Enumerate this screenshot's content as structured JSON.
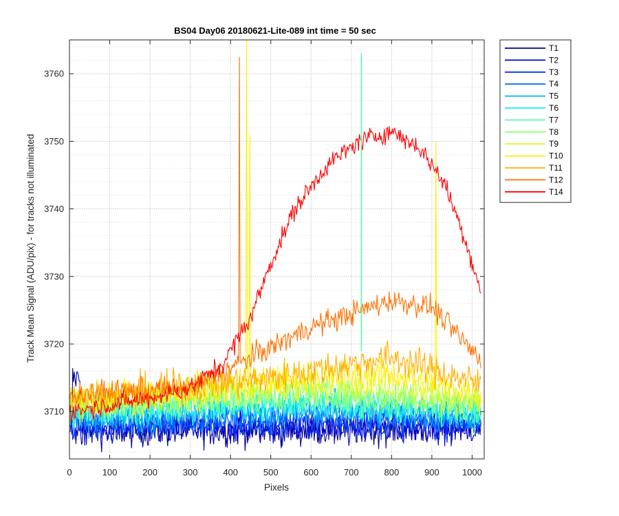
{
  "chart_data": {
    "type": "line",
    "title": "BS04 Day06 20180621-Lite-089 int time = 50 sec",
    "xlabel": "Pixels",
    "ylabel": "Track Mean Signal (ADU/pix) - for tracks not illuminated",
    "xlim": [
      0,
      1030
    ],
    "ylim": [
      3703,
      3765
    ],
    "xticks": [
      "0",
      "100",
      "200",
      "300",
      "400",
      "500",
      "600",
      "700",
      "800",
      "900",
      "1000"
    ],
    "yticks": [
      "3710",
      "3720",
      "3730",
      "3740",
      "3750",
      "3760"
    ],
    "grid": "major and minor (dotted)",
    "legend_position": "outside-right-top",
    "series": [
      {
        "name": "T1",
        "color": "#00008f",
        "baseline": [
          [
            0,
            3707.0
          ],
          [
            1023,
            3707.5
          ]
        ],
        "noise": 1.6
      },
      {
        "name": "T2",
        "color": "#0000d0",
        "baseline": [
          [
            0,
            3707.3
          ],
          [
            1023,
            3707.8
          ]
        ],
        "noise": 1.6
      },
      {
        "name": "T3",
        "color": "#0030ff",
        "baseline": [
          [
            0,
            3708.0
          ],
          [
            1023,
            3708.4
          ]
        ],
        "noise": 1.6
      },
      {
        "name": "T4",
        "color": "#0070ff",
        "baseline": [
          [
            0,
            3708.5
          ],
          [
            600,
            3709.5
          ],
          [
            1023,
            3708.8
          ]
        ],
        "noise": 1.6
      },
      {
        "name": "T5",
        "color": "#00b0ff",
        "baseline": [
          [
            0,
            3709.0
          ],
          [
            600,
            3710.5
          ],
          [
            1023,
            3709.3
          ]
        ],
        "noise": 1.6
      },
      {
        "name": "T6",
        "color": "#10f0ef",
        "baseline": [
          [
            0,
            3709.5
          ],
          [
            600,
            3711.0
          ],
          [
            1023,
            3709.8
          ]
        ],
        "noise": 1.6
      },
      {
        "name": "T7",
        "color": "#50ffaf",
        "baseline": [
          [
            0,
            3710.0
          ],
          [
            600,
            3711.8
          ],
          [
            1023,
            3710.3
          ]
        ],
        "noise": 1.6
      },
      {
        "name": "T8",
        "color": "#8fff70",
        "baseline": [
          [
            0,
            3710.5
          ],
          [
            600,
            3712.8
          ],
          [
            1023,
            3711.0
          ]
        ],
        "noise": 1.6
      },
      {
        "name": "T9",
        "color": "#cfff30",
        "baseline": [
          [
            0,
            3711.0
          ],
          [
            600,
            3713.8
          ],
          [
            1023,
            3711.8
          ]
        ],
        "noise": 1.6
      },
      {
        "name": "T10",
        "color": "#ffef00",
        "baseline": [
          [
            0,
            3711.5
          ],
          [
            600,
            3715.0
          ],
          [
            800,
            3715.5
          ],
          [
            1023,
            3712.5
          ]
        ],
        "noise": 1.7,
        "spikes": [
          [
            440,
            3765
          ],
          [
            448,
            3751
          ],
          [
            910,
            3750
          ]
        ]
      },
      {
        "name": "T11",
        "color": "#ffb000",
        "baseline": [
          [
            0,
            3712.0
          ],
          [
            500,
            3715.0
          ],
          [
            800,
            3718.0
          ],
          [
            1023,
            3714.0
          ]
        ],
        "noise": 1.7
      },
      {
        "name": "T12",
        "color": "#ff7000",
        "baseline": [
          [
            0,
            3712.5
          ],
          [
            300,
            3713.5
          ],
          [
            450,
            3718.0
          ],
          [
            600,
            3722.5
          ],
          [
            800,
            3726.5
          ],
          [
            900,
            3725.5
          ],
          [
            1023,
            3717.5
          ]
        ],
        "noise": 1.2,
        "spikes": [
          [
            422,
            3762.5
          ]
        ]
      },
      {
        "name": "T14",
        "color": "#ff0000",
        "baseline": [
          [
            0,
            3710.0
          ],
          [
            200,
            3712.0
          ],
          [
            300,
            3713.5
          ],
          [
            380,
            3717.0
          ],
          [
            450,
            3724.0
          ],
          [
            500,
            3732.0
          ],
          [
            560,
            3740.0
          ],
          [
            640,
            3746.5
          ],
          [
            720,
            3750.0
          ],
          [
            800,
            3751.5
          ],
          [
            870,
            3749.0
          ],
          [
            930,
            3744.0
          ],
          [
            980,
            3736.0
          ],
          [
            1023,
            3727.5
          ]
        ],
        "noise": 1.0
      }
    ],
    "cyan_spike": {
      "series": "T7",
      "x": 725,
      "y": 3763
    }
  }
}
